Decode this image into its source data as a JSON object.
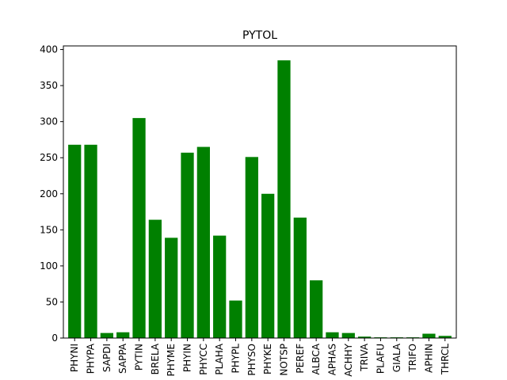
{
  "chart_data": {
    "type": "bar",
    "title": "PYTOL",
    "xlabel": "",
    "ylabel": "",
    "ylim": [
      0,
      405
    ],
    "yticks": [
      0,
      50,
      100,
      150,
      200,
      250,
      300,
      350,
      400
    ],
    "bar_color": "#008000",
    "grid": false,
    "categories": [
      "PHYNI",
      "PHYPA",
      "SAPDI",
      "SAPPA",
      "PYTIN",
      "BRELA",
      "PHYME",
      "PHYIN",
      "PHYCC",
      "PLAHA",
      "PHYPL",
      "PHYSO",
      "PHYKE",
      "NOTSP",
      "PEREF",
      "ALBCA",
      "APHAS",
      "ACHHY",
      "TRIVA",
      "PLAFU",
      "GIALA",
      "TRIFO",
      "APHIN",
      "THRCL"
    ],
    "values": [
      268,
      268,
      7,
      8,
      305,
      164,
      139,
      257,
      265,
      142,
      52,
      251,
      200,
      385,
      167,
      80,
      8,
      7,
      2,
      1,
      1,
      1,
      6,
      3
    ]
  }
}
